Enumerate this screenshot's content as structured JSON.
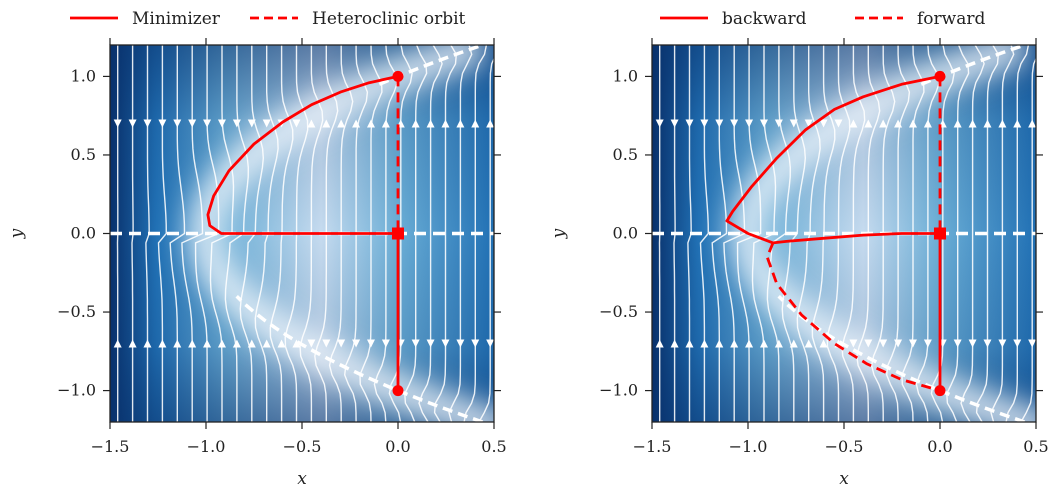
{
  "chart_data": [
    {
      "type": "line",
      "title": "",
      "xlabel": "x",
      "ylabel": "y",
      "xlim": [
        -1.5,
        0.5
      ],
      "ylim": [
        -1.2,
        1.2
      ],
      "xticks": [
        "−1.5",
        "−1.0",
        "−0.5",
        "0.0",
        "0.5"
      ],
      "yticks": [
        "−1.0",
        "−0.5",
        "0.0",
        "0.5",
        "1.0"
      ],
      "background": "velocity-magnitude heatmap with white streamlines",
      "colormap": [
        "#08306b",
        "#2171b5",
        "#6baed6",
        "#deebf7",
        "#f7fbff"
      ],
      "legend": {
        "placement": "above",
        "entries": [
          {
            "name": "Minimizer",
            "style": "solid",
            "color": "#ff0000"
          },
          {
            "name": "Heteroclinic orbit",
            "style": "dashed",
            "color": "#ff0000"
          }
        ]
      },
      "series": [
        {
          "name": "Minimizer",
          "style": "solid",
          "color": "#ff0000",
          "x": [
            0.0,
            -0.15,
            -0.3,
            -0.45,
            -0.6,
            -0.75,
            -0.88,
            -0.96,
            -0.99,
            -0.98,
            -0.92,
            -0.8,
            -0.6,
            -0.4,
            -0.2,
            0.0,
            0.0
          ],
          "y": [
            1.0,
            0.96,
            0.9,
            0.82,
            0.71,
            0.57,
            0.4,
            0.24,
            0.12,
            0.05,
            0.0,
            0.0,
            0.0,
            0.0,
            0.0,
            0.0,
            -1.0
          ]
        },
        {
          "name": "Heteroclinic orbit",
          "style": "dashed",
          "color": "#ff0000",
          "x": [
            0.0,
            0.0
          ],
          "y": [
            1.0,
            0.0
          ]
        }
      ],
      "markers": [
        {
          "x": 0.0,
          "y": 1.0,
          "shape": "circle"
        },
        {
          "x": 0.0,
          "y": -1.0,
          "shape": "circle"
        },
        {
          "x": 0.0,
          "y": 0.0,
          "shape": "square"
        }
      ]
    },
    {
      "type": "line",
      "title": "",
      "xlabel": "x",
      "ylabel": "y",
      "xlim": [
        -1.5,
        0.5
      ],
      "ylim": [
        -1.2,
        1.2
      ],
      "xticks": [
        "−1.5",
        "−1.0",
        "−0.5",
        "0.0",
        "0.5"
      ],
      "yticks": [
        "−1.0",
        "−0.5",
        "0.0",
        "0.5",
        "1.0"
      ],
      "background": "velocity-magnitude heatmap with white streamlines",
      "legend": {
        "placement": "above",
        "entries": [
          {
            "name": "backward",
            "style": "solid",
            "color": "#ff0000"
          },
          {
            "name": "forward",
            "style": "dashed",
            "color": "#ff0000"
          }
        ]
      },
      "series": [
        {
          "name": "backward",
          "style": "solid",
          "color": "#ff0000",
          "x": [
            0.0,
            -0.2,
            -0.4,
            -0.55,
            -0.7,
            -0.85,
            -0.98,
            -1.08,
            -1.11,
            -1.0,
            -0.87,
            -0.8,
            -0.6,
            -0.4,
            -0.2,
            0.0,
            0.0
          ],
          "y": [
            1.0,
            0.95,
            0.87,
            0.79,
            0.66,
            0.48,
            0.3,
            0.14,
            0.08,
            0.0,
            -0.06,
            -0.05,
            -0.03,
            -0.01,
            0.0,
            0.0,
            -1.0
          ]
        },
        {
          "name": "forward",
          "style": "dashed",
          "color": "#ff0000",
          "x": [
            0.0,
            0.0,
            null,
            -0.87,
            -0.9,
            -0.85,
            -0.72,
            -0.55,
            -0.38,
            -0.2,
            0.0
          ],
          "y": [
            1.0,
            0.0,
            null,
            -0.06,
            -0.15,
            -0.32,
            -0.52,
            -0.7,
            -0.83,
            -0.93,
            -1.0
          ]
        }
      ],
      "markers": [
        {
          "x": 0.0,
          "y": 1.0,
          "shape": "circle"
        },
        {
          "x": 0.0,
          "y": -1.0,
          "shape": "circle"
        },
        {
          "x": 0.0,
          "y": 0.0,
          "shape": "square"
        }
      ]
    }
  ]
}
